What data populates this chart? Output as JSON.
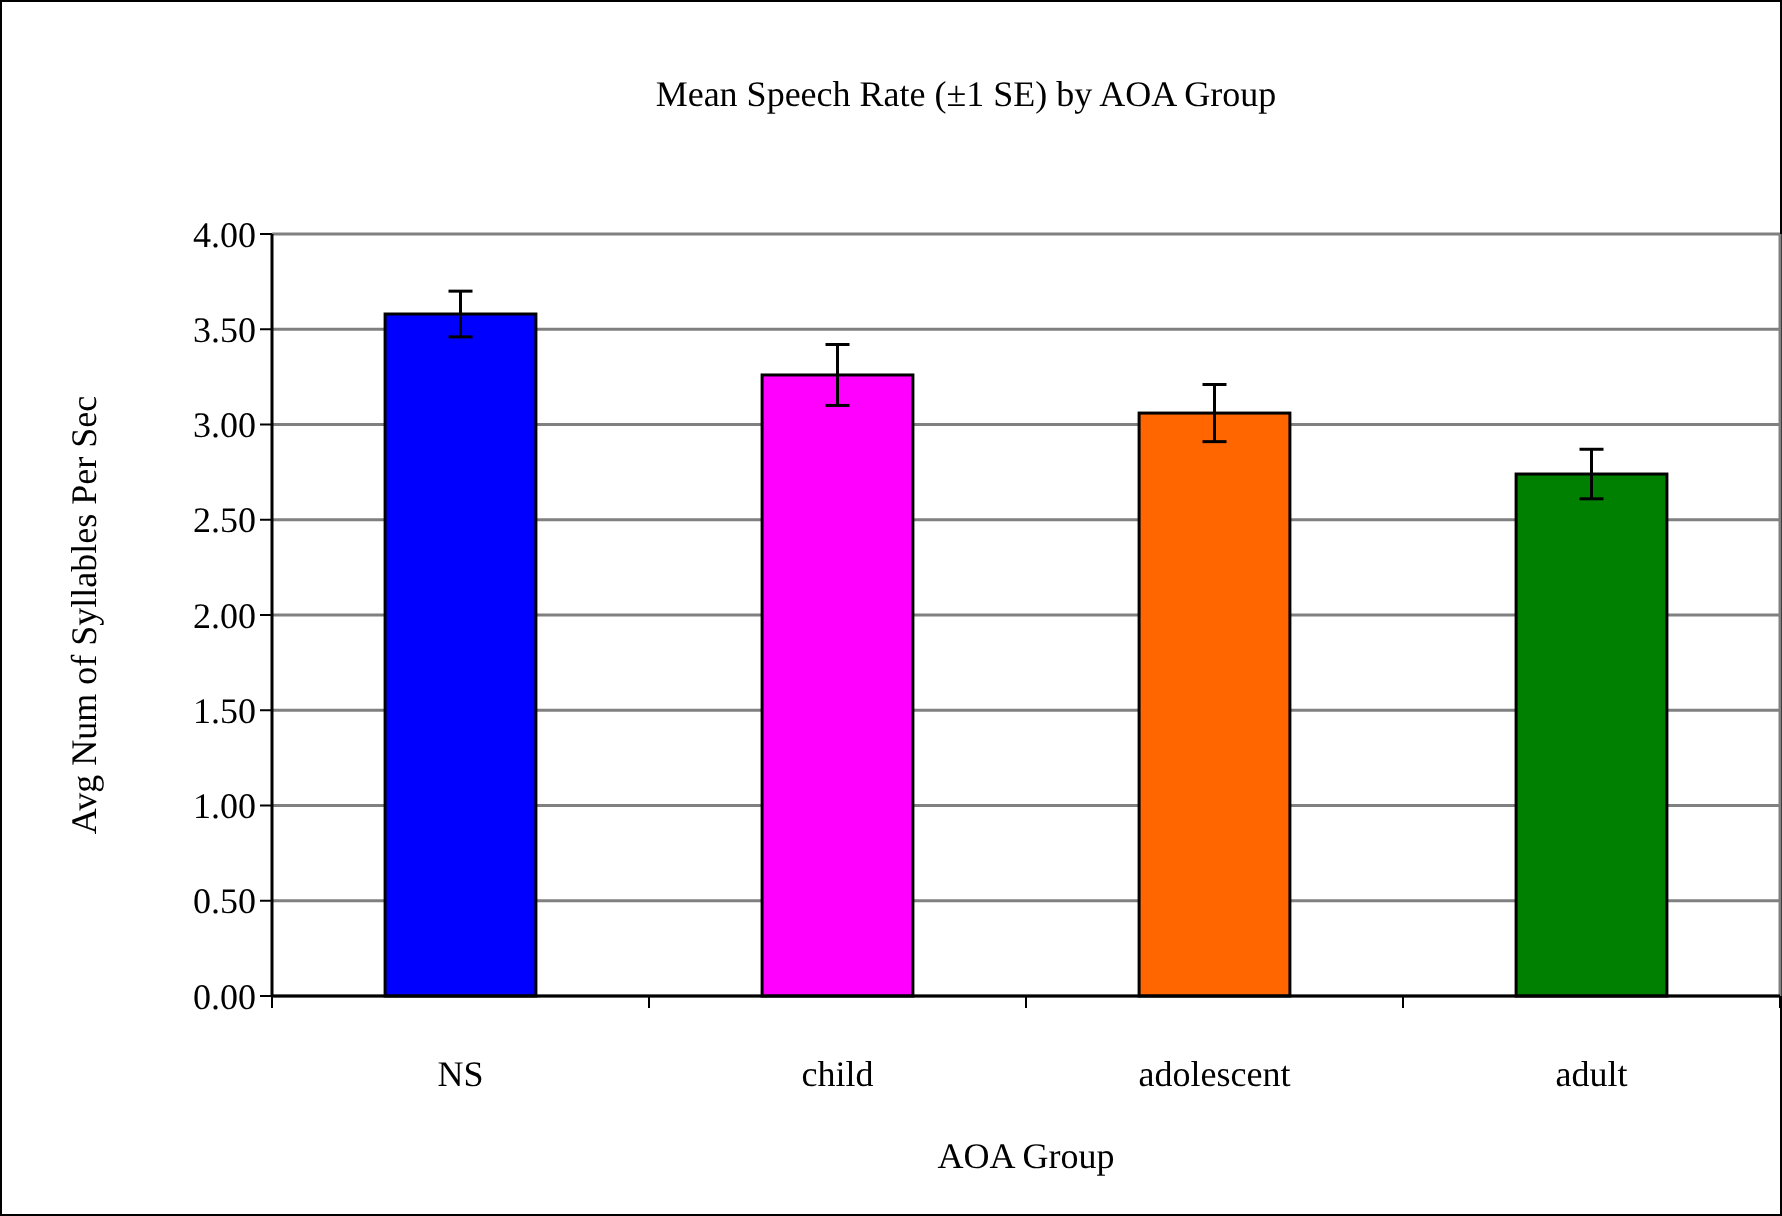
{
  "chart_data": {
    "type": "bar",
    "title": "Mean Speech Rate  (±1 SE) by AOA Group",
    "xlabel": "AOA Group",
    "ylabel": "Avg Num of Syllables Per Sec",
    "categories": [
      "NS",
      "child",
      "adolescent",
      "adult"
    ],
    "values": [
      3.58,
      3.26,
      3.06,
      2.74
    ],
    "colors": [
      "#0000ff",
      "#ff00ff",
      "#ff6600",
      "#008000"
    ],
    "errors": [
      0.12,
      0.16,
      0.15,
      0.13
    ],
    "ylim": [
      0,
      4
    ],
    "yticks": [
      {
        "value": 0,
        "label": "0.00"
      },
      {
        "value": 0.5,
        "label": "0.50"
      },
      {
        "value": 1,
        "label": "1.00"
      },
      {
        "value": 1.5,
        "label": "1.50"
      },
      {
        "value": 2,
        "label": "2.00"
      },
      {
        "value": 2.5,
        "label": "2.50"
      },
      {
        "value": 3,
        "label": "3.00"
      },
      {
        "value": 3.5,
        "label": "3.50"
      },
      {
        "value": 4,
        "label": "4.00"
      }
    ],
    "grid": "y"
  }
}
